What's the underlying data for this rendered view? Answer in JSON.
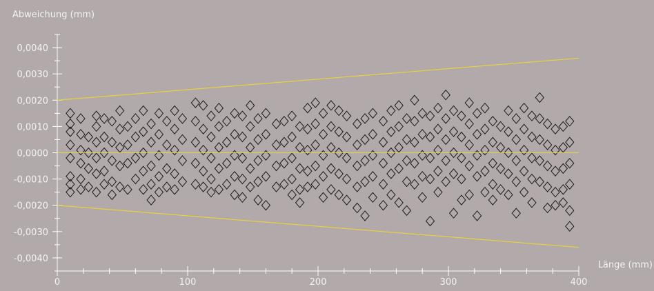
{
  "chart_data": {
    "type": "scatter",
    "title": "",
    "ylabel": "Abweichung (mm)",
    "xlabel": "Länge (mm)",
    "xlim": [
      0,
      400
    ],
    "ylim": [
      -0.0045,
      0.0045
    ],
    "x_ticks": [
      0,
      100,
      200,
      300,
      400
    ],
    "x_tick_labels": [
      "0",
      "100",
      "200",
      "300",
      "400"
    ],
    "y_ticks": [
      0.004,
      0.003,
      0.002,
      0.001,
      0.0,
      -0.001,
      -0.002,
      -0.003,
      -0.004
    ],
    "y_tick_labels": [
      "0,0040",
      "0,0030",
      "0,0020",
      "0,0010",
      "0,0000",
      "-0,0010",
      "-0,0020",
      "-0,0030",
      "-0,0040"
    ],
    "grid": false,
    "marker": "diamond",
    "colors": {
      "background": "#b1a9aa",
      "axis": "#ffffff",
      "text": "#f3f3f3",
      "limit_lines": "#e8d23c",
      "zero_line": "#e8d23c",
      "markers": "#1a1a1a"
    },
    "limit_lines": [
      {
        "x": [
          0,
          400
        ],
        "y": [
          0.002,
          0.0036
        ]
      },
      {
        "x": [
          0,
          400
        ],
        "y": [
          -0.002,
          -0.0036
        ]
      }
    ],
    "zero_line": {
      "x": [
        0,
        400
      ],
      "y": [
        0,
        0
      ]
    },
    "points_summary": {
      "x_range": [
        10,
        393
      ],
      "y_range": [
        -0.0028,
        0.0022
      ],
      "note_free": true
    },
    "points": [
      [
        10,
        0.0015
      ],
      [
        10,
        0.0011
      ],
      [
        10,
        0.0008
      ],
      [
        10,
        0.0003
      ],
      [
        10,
        -0.0002
      ],
      [
        10,
        -0.0009
      ],
      [
        10,
        -0.0012
      ],
      [
        10,
        -0.0015
      ],
      [
        18,
        0.0013
      ],
      [
        18,
        0.0007
      ],
      [
        18,
        0.0001
      ],
      [
        18,
        -0.0004
      ],
      [
        18,
        -0.001
      ],
      [
        18,
        -0.0014
      ],
      [
        24,
        0.0006
      ],
      [
        24,
        0.0
      ],
      [
        24,
        -0.0006
      ],
      [
        24,
        -0.0013
      ],
      [
        30,
        0.0014
      ],
      [
        30,
        0.001
      ],
      [
        30,
        0.0004
      ],
      [
        30,
        -0.0002
      ],
      [
        30,
        -0.0008
      ],
      [
        30,
        -0.0015
      ],
      [
        36,
        0.0013
      ],
      [
        36,
        0.0006
      ],
      [
        36,
        0.0
      ],
      [
        36,
        -0.0007
      ],
      [
        36,
        -0.0012
      ],
      [
        42,
        0.0012
      ],
      [
        42,
        0.0004
      ],
      [
        42,
        -0.0003
      ],
      [
        42,
        -0.0011
      ],
      [
        42,
        -0.0016
      ],
      [
        48,
        0.0016
      ],
      [
        48,
        0.0009
      ],
      [
        48,
        0.0002
      ],
      [
        48,
        -0.0005
      ],
      [
        48,
        -0.0013
      ],
      [
        54,
        0.001
      ],
      [
        54,
        0.0003
      ],
      [
        54,
        -0.0004
      ],
      [
        54,
        -0.0014
      ],
      [
        60,
        0.0013
      ],
      [
        60,
        0.0006
      ],
      [
        60,
        -0.0002
      ],
      [
        60,
        -0.001
      ],
      [
        66,
        0.0016
      ],
      [
        66,
        0.0008
      ],
      [
        66,
        0.0
      ],
      [
        66,
        -0.0007
      ],
      [
        66,
        -0.0014
      ],
      [
        72,
        0.0011
      ],
      [
        72,
        0.0004
      ],
      [
        72,
        -0.0005
      ],
      [
        72,
        -0.0012
      ],
      [
        72,
        -0.0018
      ],
      [
        78,
        0.0015
      ],
      [
        78,
        0.0007
      ],
      [
        78,
        -0.0001
      ],
      [
        78,
        -0.0009
      ],
      [
        78,
        -0.0015
      ],
      [
        84,
        0.0012
      ],
      [
        84,
        0.0003
      ],
      [
        84,
        -0.0006
      ],
      [
        84,
        -0.0013
      ],
      [
        90,
        0.0016
      ],
      [
        90,
        0.0009
      ],
      [
        90,
        0.0001
      ],
      [
        90,
        -0.0008
      ],
      [
        90,
        -0.0014
      ],
      [
        96,
        0.0013
      ],
      [
        96,
        0.0005
      ],
      [
        96,
        -0.0003
      ],
      [
        96,
        -0.0011
      ],
      [
        106,
        0.0019
      ],
      [
        106,
        0.0012
      ],
      [
        106,
        0.0004
      ],
      [
        106,
        -0.0004
      ],
      [
        106,
        -0.0012
      ],
      [
        112,
        0.0018
      ],
      [
        112,
        0.0009
      ],
      [
        112,
        0.0001
      ],
      [
        112,
        -0.0007
      ],
      [
        112,
        -0.0013
      ],
      [
        118,
        0.0014
      ],
      [
        118,
        0.0006
      ],
      [
        118,
        -0.0002
      ],
      [
        118,
        -0.001
      ],
      [
        118,
        -0.0015
      ],
      [
        124,
        0.0017
      ],
      [
        124,
        0.001
      ],
      [
        124,
        0.0002
      ],
      [
        124,
        -0.0006
      ],
      [
        124,
        -0.0014
      ],
      [
        130,
        0.0012
      ],
      [
        130,
        0.0004
      ],
      [
        130,
        -0.0004
      ],
      [
        130,
        -0.0012
      ],
      [
        136,
        0.0015
      ],
      [
        136,
        0.0007
      ],
      [
        136,
        -0.0001
      ],
      [
        136,
        -0.0009
      ],
      [
        136,
        -0.0016
      ],
      [
        142,
        0.0014
      ],
      [
        142,
        0.0006
      ],
      [
        142,
        -0.0002
      ],
      [
        142,
        -0.001
      ],
      [
        142,
        -0.0017
      ],
      [
        148,
        0.0018
      ],
      [
        148,
        0.001
      ],
      [
        148,
        0.0002
      ],
      [
        148,
        -0.0006
      ],
      [
        148,
        -0.0013
      ],
      [
        154,
        0.0013
      ],
      [
        154,
        0.0005
      ],
      [
        154,
        -0.0003
      ],
      [
        154,
        -0.0011
      ],
      [
        154,
        -0.0018
      ],
      [
        160,
        0.0015
      ],
      [
        160,
        0.0007
      ],
      [
        160,
        -0.0001
      ],
      [
        160,
        -0.0009
      ],
      [
        160,
        -0.002
      ],
      [
        168,
        0.0011
      ],
      [
        168,
        0.0003
      ],
      [
        168,
        -0.0005
      ],
      [
        168,
        -0.0013
      ],
      [
        174,
        0.0012
      ],
      [
        174,
        0.0004
      ],
      [
        174,
        -0.0004
      ],
      [
        174,
        -0.0012
      ],
      [
        180,
        0.0014
      ],
      [
        180,
        0.0006
      ],
      [
        180,
        -0.0002
      ],
      [
        180,
        -0.001
      ],
      [
        180,
        -0.0016
      ],
      [
        186,
        0.001
      ],
      [
        186,
        0.0002
      ],
      [
        186,
        -0.0006
      ],
      [
        186,
        -0.0014
      ],
      [
        186,
        -0.0019
      ],
      [
        192,
        0.0017
      ],
      [
        192,
        0.0009
      ],
      [
        192,
        0.0001
      ],
      [
        192,
        -0.0007
      ],
      [
        192,
        -0.0013
      ],
      [
        198,
        0.0019
      ],
      [
        198,
        0.0011
      ],
      [
        198,
        0.0003
      ],
      [
        198,
        -0.0005
      ],
      [
        198,
        -0.0012
      ],
      [
        204,
        0.0015
      ],
      [
        204,
        0.0007
      ],
      [
        204,
        -0.0001
      ],
      [
        204,
        -0.0009
      ],
      [
        204,
        -0.0017
      ],
      [
        210,
        0.0018
      ],
      [
        210,
        0.001
      ],
      [
        210,
        0.0002
      ],
      [
        210,
        -0.0006
      ],
      [
        210,
        -0.0014
      ],
      [
        216,
        0.0016
      ],
      [
        216,
        0.0008
      ],
      [
        216,
        0.0
      ],
      [
        216,
        -0.0008
      ],
      [
        216,
        -0.0016
      ],
      [
        222,
        0.0014
      ],
      [
        222,
        0.0006
      ],
      [
        222,
        -0.0002
      ],
      [
        222,
        -0.001
      ],
      [
        222,
        -0.0018
      ],
      [
        230,
        0.0011
      ],
      [
        230,
        0.0003
      ],
      [
        230,
        -0.0005
      ],
      [
        230,
        -0.0013
      ],
      [
        230,
        -0.0021
      ],
      [
        236,
        0.0013
      ],
      [
        236,
        0.0005
      ],
      [
        236,
        -0.0003
      ],
      [
        236,
        -0.0011
      ],
      [
        236,
        -0.0024
      ],
      [
        242,
        0.0015
      ],
      [
        242,
        0.0007
      ],
      [
        242,
        -0.0001
      ],
      [
        242,
        -0.0009
      ],
      [
        242,
        -0.0017
      ],
      [
        250,
        0.0012
      ],
      [
        250,
        0.0004
      ],
      [
        250,
        -0.0004
      ],
      [
        250,
        -0.0012
      ],
      [
        250,
        -0.002
      ],
      [
        256,
        0.0016
      ],
      [
        256,
        0.0008
      ],
      [
        256,
        0.0
      ],
      [
        256,
        -0.0008
      ],
      [
        256,
        -0.0016
      ],
      [
        262,
        0.0018
      ],
      [
        262,
        0.001
      ],
      [
        262,
        0.0002
      ],
      [
        262,
        -0.0006
      ],
      [
        262,
        -0.0019
      ],
      [
        268,
        0.0013
      ],
      [
        268,
        0.0005
      ],
      [
        268,
        -0.0003
      ],
      [
        268,
        -0.0011
      ],
      [
        268,
        -0.0022
      ],
      [
        274,
        0.002
      ],
      [
        274,
        0.0012
      ],
      [
        274,
        0.0004
      ],
      [
        274,
        -0.0004
      ],
      [
        274,
        -0.0012
      ],
      [
        280,
        0.0015
      ],
      [
        280,
        0.0007
      ],
      [
        280,
        -0.0001
      ],
      [
        280,
        -0.0009
      ],
      [
        280,
        -0.0017
      ],
      [
        286,
        0.0014
      ],
      [
        286,
        0.0006
      ],
      [
        286,
        -0.0002
      ],
      [
        286,
        -0.001
      ],
      [
        286,
        -0.0026
      ],
      [
        292,
        0.0017
      ],
      [
        292,
        0.0009
      ],
      [
        292,
        0.0001
      ],
      [
        292,
        -0.0007
      ],
      [
        292,
        -0.0015
      ],
      [
        298,
        0.0022
      ],
      [
        298,
        0.0013
      ],
      [
        298,
        0.0005
      ],
      [
        298,
        -0.0003
      ],
      [
        298,
        -0.0011
      ],
      [
        304,
        0.0016
      ],
      [
        304,
        0.0008
      ],
      [
        304,
        0.0
      ],
      [
        304,
        -0.0008
      ],
      [
        304,
        -0.0023
      ],
      [
        310,
        0.0014
      ],
      [
        310,
        0.0006
      ],
      [
        310,
        -0.0002
      ],
      [
        310,
        -0.001
      ],
      [
        310,
        -0.0018
      ],
      [
        316,
        0.0019
      ],
      [
        316,
        0.0011
      ],
      [
        316,
        0.0003
      ],
      [
        316,
        -0.0005
      ],
      [
        316,
        -0.0016
      ],
      [
        322,
        0.0015
      ],
      [
        322,
        0.0007
      ],
      [
        322,
        -0.0001
      ],
      [
        322,
        -0.0009
      ],
      [
        322,
        -0.0024
      ],
      [
        328,
        0.0017
      ],
      [
        328,
        0.0009
      ],
      [
        328,
        0.0001
      ],
      [
        328,
        -0.0007
      ],
      [
        328,
        -0.0015
      ],
      [
        334,
        0.0012
      ],
      [
        334,
        0.0004
      ],
      [
        334,
        -0.0004
      ],
      [
        334,
        -0.0012
      ],
      [
        334,
        -0.0018
      ],
      [
        340,
        0.001
      ],
      [
        340,
        0.0002
      ],
      [
        340,
        -0.0006
      ],
      [
        340,
        -0.0014
      ],
      [
        346,
        0.0016
      ],
      [
        346,
        0.0008
      ],
      [
        346,
        0.0
      ],
      [
        346,
        -0.0008
      ],
      [
        346,
        -0.0016
      ],
      [
        352,
        0.0013
      ],
      [
        352,
        0.0005
      ],
      [
        352,
        -0.0003
      ],
      [
        352,
        -0.0011
      ],
      [
        352,
        -0.0023
      ],
      [
        358,
        0.0017
      ],
      [
        358,
        0.0009
      ],
      [
        358,
        0.0001
      ],
      [
        358,
        -0.0007
      ],
      [
        358,
        -0.0015
      ],
      [
        364,
        0.0014
      ],
      [
        364,
        0.0006
      ],
      [
        364,
        -0.0002
      ],
      [
        364,
        -0.001
      ],
      [
        364,
        -0.0019
      ],
      [
        370,
        0.0021
      ],
      [
        370,
        0.0013
      ],
      [
        370,
        0.0005
      ],
      [
        370,
        -0.0003
      ],
      [
        370,
        -0.0011
      ],
      [
        376,
        0.0011
      ],
      [
        376,
        0.0003
      ],
      [
        376,
        -0.0005
      ],
      [
        376,
        -0.0013
      ],
      [
        376,
        -0.0021
      ],
      [
        382,
        0.0009
      ],
      [
        382,
        0.0001
      ],
      [
        382,
        -0.0007
      ],
      [
        382,
        -0.0015
      ],
      [
        382,
        -0.002
      ],
      [
        388,
        0.001
      ],
      [
        388,
        0.0002
      ],
      [
        388,
        -0.0006
      ],
      [
        388,
        -0.0014
      ],
      [
        388,
        -0.0019
      ],
      [
        393,
        0.0012
      ],
      [
        393,
        0.0004
      ],
      [
        393,
        -0.0004
      ],
      [
        393,
        -0.0012
      ],
      [
        393,
        -0.0022
      ],
      [
        393,
        -0.0028
      ]
    ]
  }
}
